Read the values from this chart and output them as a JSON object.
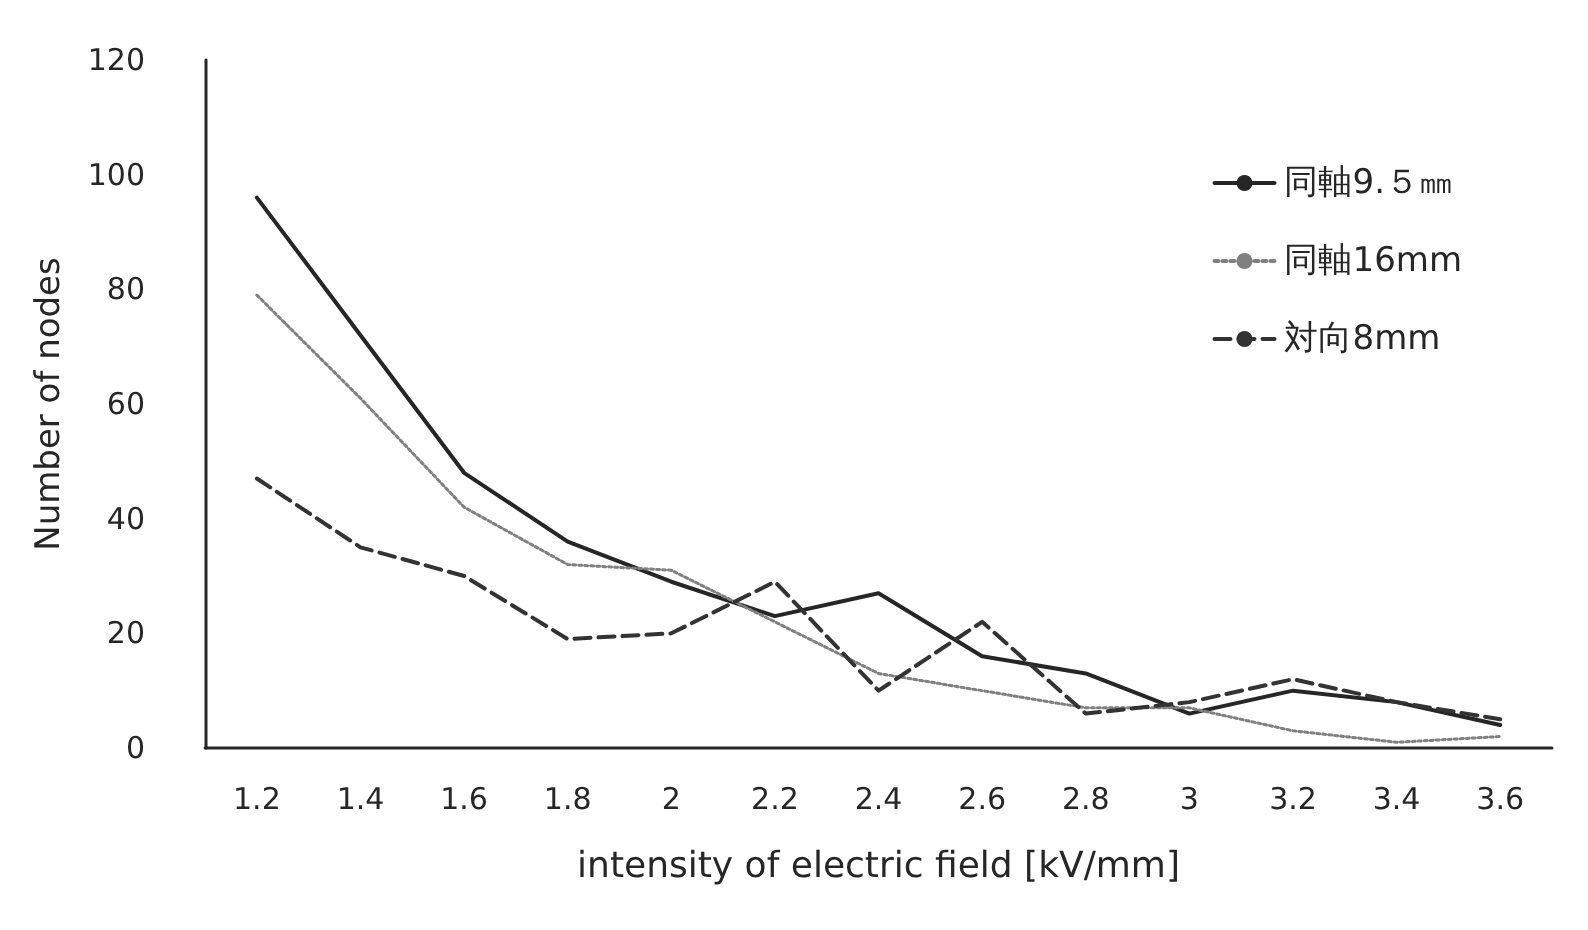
{
  "chart_data": {
    "type": "line",
    "xlabel": "intensity of electric field [kV/mm]",
    "ylabel": "Number of nodes",
    "categories": [
      "1.2",
      "1.4",
      "1.6",
      "1.8",
      "2",
      "2.2",
      "2.4",
      "2.6",
      "2.8",
      "3",
      "3.2",
      "3.4",
      "3.6"
    ],
    "series": [
      {
        "name": "同軸9.５㎜",
        "color": "#262626",
        "line_style": "solid",
        "values": [
          96,
          72,
          48,
          36,
          29,
          23,
          27,
          16,
          13,
          6,
          10,
          8,
          4
        ]
      },
      {
        "name": "同軸16mm",
        "color": "#808080",
        "line_style": "dotted",
        "values": [
          79,
          61,
          42,
          32,
          31,
          22,
          13,
          10,
          7,
          7,
          3,
          1,
          2
        ]
      },
      {
        "name": "対向8mm",
        "color": "#333333",
        "line_style": "dashed",
        "values": [
          47,
          35,
          30,
          19,
          20,
          29,
          10,
          22,
          6,
          8,
          12,
          8,
          5
        ]
      }
    ],
    "ylim": [
      0,
      120
    ],
    "yticks": [
      0,
      20,
      40,
      60,
      80,
      100,
      120
    ],
    "grid": false,
    "legend": "top right",
    "marker": "none"
  }
}
